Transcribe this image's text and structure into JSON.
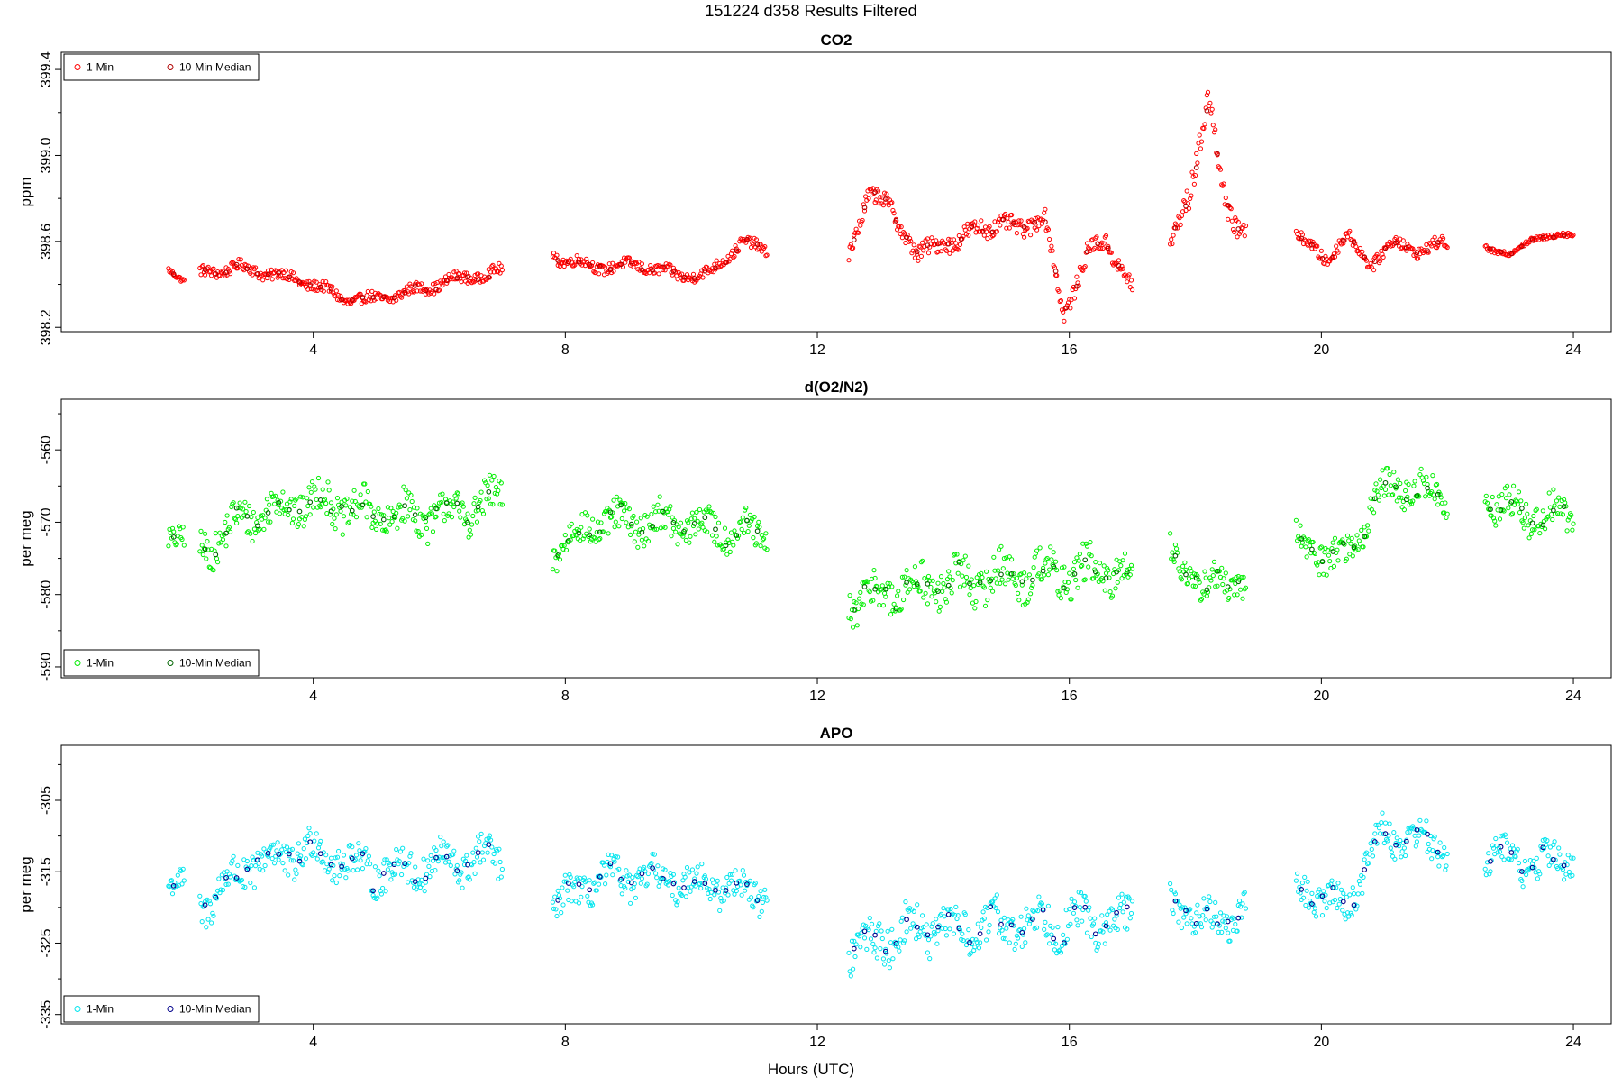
{
  "figure": {
    "suptitle": "151224   d358   Results Filtered",
    "xlabel": "Hours (UTC)"
  },
  "chart_data": [
    {
      "type": "scatter",
      "title": "CO2",
      "ylabel": "ppm",
      "xlabel": "Hours (UTC)",
      "xlim": [
        0,
        24.6
      ],
      "ylim": [
        398.18,
        399.48
      ],
      "xticks": [
        4,
        8,
        12,
        16,
        20,
        24
      ],
      "xtick_labels": [
        "4",
        "8",
        "12",
        "16",
        "20",
        "24"
      ],
      "yticks": [
        398.2,
        398.6,
        399.0,
        399.4
      ],
      "ytick_labels": [
        "398.2",
        "398.6",
        "399.0",
        "399.4"
      ],
      "legend": {
        "position": "top-left",
        "entries": [
          {
            "label": "1-Min",
            "color": "#ff0000"
          },
          {
            "label": "10-Min Median",
            "color": "#b00000"
          }
        ]
      },
      "series": [
        {
          "name": "1-Min",
          "color": "#ff0000",
          "segments": [
            {
              "x_start": 1.7,
              "x_end": 1.95,
              "knots": [
                [
                  1.7,
                  398.47
                ],
                [
                  1.95,
                  398.42
                ]
              ],
              "noise": 0.02
            },
            {
              "x_start": 2.2,
              "x_end": 7.0,
              "knots": [
                [
                  2.2,
                  398.45
                ],
                [
                  2.8,
                  398.48
                ],
                [
                  3.5,
                  398.44
                ],
                [
                  4.0,
                  398.4
                ],
                [
                  4.5,
                  398.33
                ],
                [
                  5.0,
                  398.33
                ],
                [
                  5.6,
                  398.37
                ],
                [
                  6.2,
                  398.42
                ],
                [
                  7.0,
                  398.46
                ]
              ],
              "noise": 0.045
            },
            {
              "x_start": 7.8,
              "x_end": 11.2,
              "knots": [
                [
                  7.8,
                  398.53
                ],
                [
                  8.5,
                  398.48
                ],
                [
                  9.2,
                  398.49
                ],
                [
                  9.8,
                  398.44
                ],
                [
                  10.3,
                  398.45
                ],
                [
                  10.8,
                  398.6
                ],
                [
                  11.2,
                  398.55
                ]
              ],
              "noise": 0.045
            },
            {
              "x_start": 12.5,
              "x_end": 14.2,
              "knots": [
                [
                  12.5,
                  398.55
                ],
                [
                  12.8,
                  398.82
                ],
                [
                  13.2,
                  398.75
                ],
                [
                  13.6,
                  398.52
                ],
                [
                  14.0,
                  398.62
                ],
                [
                  14.2,
                  398.58
                ]
              ],
              "noise": 0.07
            },
            {
              "x_start": 14.2,
              "x_end": 17.0,
              "knots": [
                [
                  14.2,
                  398.58
                ],
                [
                  14.6,
                  398.68
                ],
                [
                  15.2,
                  398.66
                ],
                [
                  15.6,
                  398.72
                ],
                [
                  15.9,
                  398.26
                ],
                [
                  16.3,
                  398.55
                ],
                [
                  16.6,
                  398.6
                ],
                [
                  17.0,
                  398.38
                ]
              ],
              "noise": 0.07
            },
            {
              "x_start": 17.6,
              "x_end": 18.8,
              "knots": [
                [
                  17.6,
                  398.55
                ],
                [
                  17.9,
                  398.8
                ],
                [
                  18.2,
                  399.3
                ],
                [
                  18.5,
                  398.7
                ],
                [
                  18.8,
                  398.7
                ]
              ],
              "noise": 0.1
            },
            {
              "x_start": 19.6,
              "x_end": 22.0,
              "knots": [
                [
                  19.6,
                  398.62
                ],
                [
                  20.1,
                  398.52
                ],
                [
                  20.4,
                  398.62
                ],
                [
                  20.8,
                  398.5
                ],
                [
                  21.2,
                  398.6
                ],
                [
                  21.6,
                  398.55
                ],
                [
                  22.0,
                  398.6
                ]
              ],
              "noise": 0.05
            },
            {
              "x_start": 22.6,
              "x_end": 24.0,
              "knots": [
                [
                  22.6,
                  398.57
                ],
                [
                  23.0,
                  398.54
                ],
                [
                  23.4,
                  398.62
                ],
                [
                  24.0,
                  398.63
                ]
              ],
              "noise": 0.02
            }
          ]
        },
        {
          "name": "10-Min Median",
          "color": "#b00000",
          "every": 10
        }
      ]
    },
    {
      "type": "scatter",
      "title": "d(O2/N2)",
      "ylabel": "per meg",
      "xlabel": "Hours (UTC)",
      "xlim": [
        0,
        24.6
      ],
      "ylim": [
        -591.5,
        -553
      ],
      "xticks": [
        4,
        8,
        12,
        16,
        20,
        24
      ],
      "xtick_labels": [
        "4",
        "8",
        "12",
        "16",
        "20",
        "24"
      ],
      "yticks": [
        -590,
        -580,
        -570,
        -560
      ],
      "ytick_labels": [
        "-590",
        "-580",
        "-570",
        "-560"
      ],
      "legend": {
        "position": "bottom-left",
        "entries": [
          {
            "label": "1-Min",
            "color": "#00ee00"
          },
          {
            "label": "10-Min Median",
            "color": "#006400"
          }
        ]
      },
      "series": [
        {
          "name": "1-Min",
          "color": "#00ee00",
          "segments": [
            {
              "x_start": 1.7,
              "x_end": 1.95,
              "knots": [
                [
                  1.7,
                  -571
                ],
                [
                  1.95,
                  -572
                ]
              ],
              "noise": 3
            },
            {
              "x_start": 2.2,
              "x_end": 7.0,
              "knots": [
                [
                  2.2,
                  -574
                ],
                [
                  3.0,
                  -569
                ],
                [
                  4.0,
                  -567
                ],
                [
                  5.0,
                  -569
                ],
                [
                  6.0,
                  -569
                ],
                [
                  7.0,
                  -567
                ]
              ],
              "noise": 4.5
            },
            {
              "x_start": 7.8,
              "x_end": 11.2,
              "knots": [
                [
                  7.8,
                  -574
                ],
                [
                  8.5,
                  -570
                ],
                [
                  9.5,
                  -570
                ],
                [
                  10.5,
                  -571
                ],
                [
                  11.2,
                  -572
                ]
              ],
              "noise": 4
            },
            {
              "x_start": 12.5,
              "x_end": 17.0,
              "knots": [
                [
                  12.5,
                  -581
                ],
                [
                  13.5,
                  -579
                ],
                [
                  14.5,
                  -578
                ],
                [
                  15.5,
                  -577
                ],
                [
                  16.5,
                  -577
                ],
                [
                  17.0,
                  -577
                ]
              ],
              "noise": 5
            },
            {
              "x_start": 17.6,
              "x_end": 18.8,
              "knots": [
                [
                  17.6,
                  -575
                ],
                [
                  18.2,
                  -579
                ],
                [
                  18.8,
                  -578
                ]
              ],
              "noise": 4
            },
            {
              "x_start": 19.6,
              "x_end": 22.0,
              "knots": [
                [
                  19.6,
                  -573
                ],
                [
                  20.4,
                  -575
                ],
                [
                  20.9,
                  -566
                ],
                [
                  21.4,
                  -565
                ],
                [
                  22.0,
                  -567
                ]
              ],
              "noise": 4
            },
            {
              "x_start": 22.6,
              "x_end": 24.0,
              "knots": [
                [
                  22.6,
                  -567
                ],
                [
                  23.3,
                  -569
                ],
                [
                  24.0,
                  -569
                ]
              ],
              "noise": 4
            }
          ]
        },
        {
          "name": "10-Min Median",
          "color": "#006400",
          "every": 10
        }
      ]
    },
    {
      "type": "scatter",
      "title": "APO",
      "ylabel": "per meg",
      "xlabel": "Hours (UTC)",
      "xlim": [
        0,
        24.6
      ],
      "ylim": [
        -336.3,
        -297.3
      ],
      "xticks": [
        4,
        8,
        12,
        16,
        20,
        24
      ],
      "xtick_labels": [
        "4",
        "8",
        "12",
        "16",
        "20",
        "24"
      ],
      "yticks": [
        -335,
        -325,
        -315,
        -305
      ],
      "ytick_labels": [
        "-335",
        "-325",
        "-315",
        "-305"
      ],
      "legend": {
        "position": "bottom-left",
        "entries": [
          {
            "label": "1-Min",
            "color": "#00e5ee"
          },
          {
            "label": "10-Min Median",
            "color": "#00008b"
          }
        ]
      },
      "series": [
        {
          "name": "1-Min",
          "color": "#00e5ee",
          "segments": [
            {
              "x_start": 1.7,
              "x_end": 1.95,
              "knots": [
                [
                  1.7,
                  -316
                ],
                [
                  1.95,
                  -317
                ]
              ],
              "noise": 3
            },
            {
              "x_start": 2.2,
              "x_end": 7.0,
              "knots": [
                [
                  2.2,
                  -320
                ],
                [
                  3.0,
                  -314
                ],
                [
                  4.0,
                  -312
                ],
                [
                  5.0,
                  -315
                ],
                [
                  6.0,
                  -314
                ],
                [
                  7.0,
                  -313
                ]
              ],
              "noise": 4.5
            },
            {
              "x_start": 7.8,
              "x_end": 11.2,
              "knots": [
                [
                  7.8,
                  -320
                ],
                [
                  8.5,
                  -316
                ],
                [
                  9.5,
                  -316
                ],
                [
                  10.5,
                  -317
                ],
                [
                  11.2,
                  -318
                ]
              ],
              "noise": 4
            },
            {
              "x_start": 12.5,
              "x_end": 17.0,
              "knots": [
                [
                  12.5,
                  -326
                ],
                [
                  13.5,
                  -323
                ],
                [
                  14.5,
                  -323
                ],
                [
                  15.5,
                  -322
                ],
                [
                  16.5,
                  -322
                ],
                [
                  17.0,
                  -322
                ]
              ],
              "noise": 5
            },
            {
              "x_start": 17.6,
              "x_end": 18.8,
              "knots": [
                [
                  17.6,
                  -319
                ],
                [
                  18.2,
                  -322
                ],
                [
                  18.8,
                  -321
                ]
              ],
              "noise": 4
            },
            {
              "x_start": 19.6,
              "x_end": 22.0,
              "knots": [
                [
                  19.6,
                  -317
                ],
                [
                  20.4,
                  -320
                ],
                [
                  20.9,
                  -310
                ],
                [
                  21.4,
                  -310
                ],
                [
                  22.0,
                  -312
                ]
              ],
              "noise": 4
            },
            {
              "x_start": 22.6,
              "x_end": 24.0,
              "knots": [
                [
                  22.6,
                  -312
                ],
                [
                  23.3,
                  -314
                ],
                [
                  24.0,
                  -313
                ]
              ],
              "noise": 4
            }
          ]
        },
        {
          "name": "10-Min Median",
          "color": "#00008b",
          "every": 10
        }
      ]
    }
  ]
}
